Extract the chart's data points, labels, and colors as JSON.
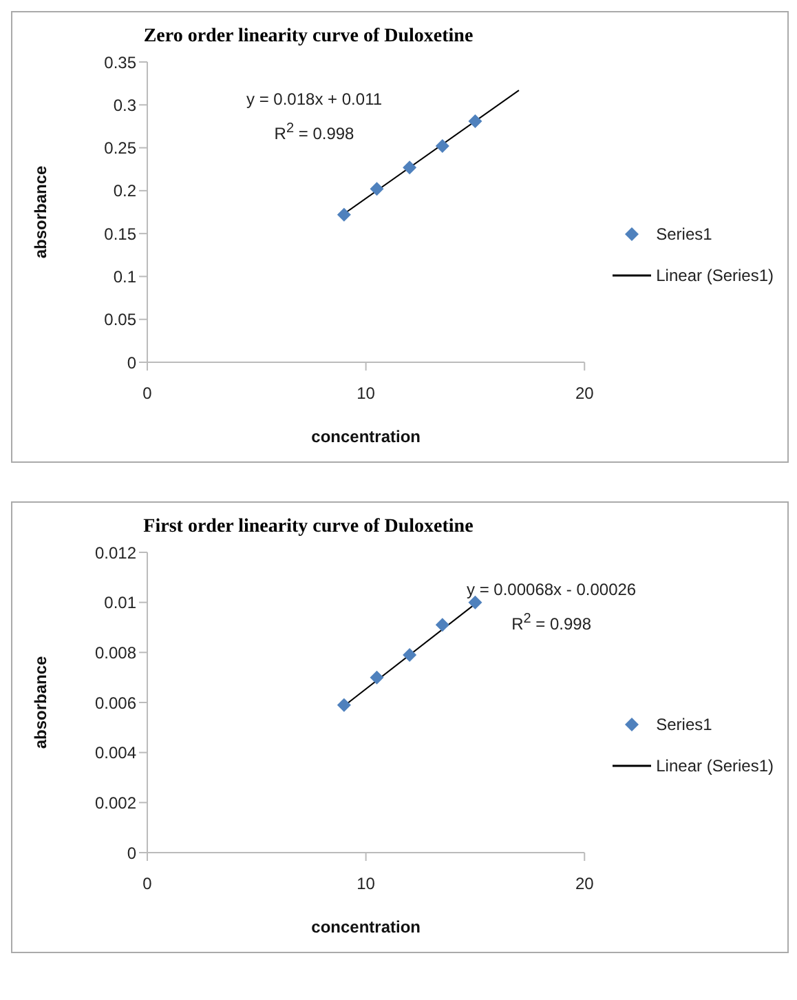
{
  "chart_data": [
    {
      "type": "scatter",
      "title": "Zero order linearity  curve of Duloxetine",
      "xlabel": "concentration",
      "ylabel": "absorbance",
      "xlim": [
        0,
        20
      ],
      "xticks": [
        0,
        10,
        20
      ],
      "ylim": [
        0,
        0.35
      ],
      "yticks": [
        0,
        0.05,
        0.1,
        0.15,
        0.2,
        0.25,
        0.3,
        0.35
      ],
      "legend": "right",
      "annotations": [
        "y = 0.018x + 0.011",
        "R$^{2}$ = 0.998"
      ],
      "series": [
        {
          "name": "Series1",
          "marker": "diamond",
          "color": "#4f81bd",
          "x": [
            9,
            10.5,
            12,
            13.5,
            15
          ],
          "values": [
            0.172,
            0.202,
            0.227,
            0.252,
            0.281
          ]
        },
        {
          "name": "Linear (Series1)",
          "type": "line",
          "marker": "none",
          "color": "#000000",
          "x": [
            9,
            17
          ],
          "values": [
            0.173,
            0.317
          ]
        }
      ]
    },
    {
      "type": "scatter",
      "title": "First order linearity  curve of Duloxetine",
      "xlabel": "concentration",
      "ylabel": "absorbance",
      "xlim": [
        0,
        20
      ],
      "xticks": [
        0,
        10,
        20
      ],
      "ylim": [
        0,
        0.012
      ],
      "yticks": [
        0,
        0.002,
        0.004,
        0.006,
        0.008,
        0.01,
        0.012
      ],
      "legend": "right",
      "annotations": [
        "y = 0.00068x - 0.00026",
        "R$^{2}$ = 0.998"
      ],
      "series": [
        {
          "name": "Series1",
          "marker": "diamond",
          "color": "#4f81bd",
          "x": [
            9,
            10.5,
            12,
            13.5,
            15
          ],
          "values": [
            0.0059,
            0.007,
            0.0079,
            0.0091,
            0.01
          ]
        },
        {
          "name": "Linear (Series1)",
          "type": "line",
          "marker": "none",
          "color": "#000000",
          "x": [
            9,
            15
          ],
          "values": [
            0.00586,
            0.00994
          ]
        }
      ]
    }
  ]
}
